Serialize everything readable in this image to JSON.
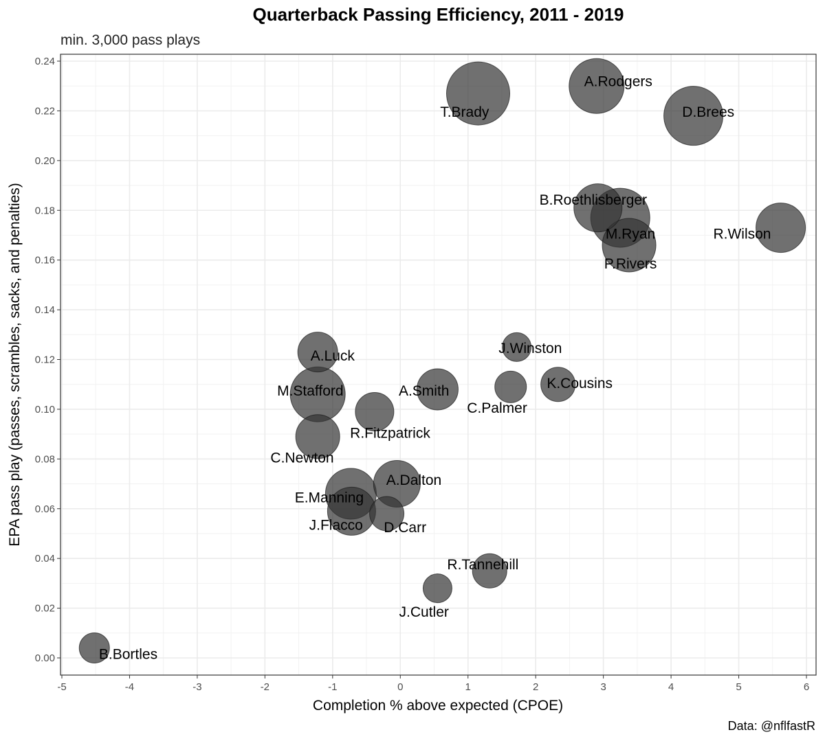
{
  "chart_data": {
    "type": "scatter",
    "title": "Quarterback Passing Efficiency, 2011 - 2019",
    "subtitle": "min. 3,000 pass plays",
    "caption": "Data: @nflfastR",
    "xlabel": "Completion % above expected (CPOE)",
    "ylabel": "EPA pass play (passes, scrambles, sacks, and penalties)",
    "xlim": [
      -5,
      6
    ],
    "ylim": [
      0,
      0.24
    ],
    "xticks": [
      -5,
      -4,
      -3,
      -2,
      -1,
      0,
      1,
      2,
      3,
      4,
      5,
      6
    ],
    "yticks": [
      0.0,
      0.02,
      0.04,
      0.06,
      0.08,
      0.1,
      0.12,
      0.14,
      0.16,
      0.18,
      0.2,
      0.22,
      0.24
    ],
    "ytick_labels": [
      "0.00",
      "0.02",
      "0.04",
      "0.06",
      "0.08",
      "0.10",
      "0.12",
      "0.14",
      "0.16",
      "0.18",
      "0.20",
      "0.22",
      "0.24"
    ],
    "grid": true,
    "point_color": "#333333",
    "points": [
      {
        "label": "T.Brady",
        "x": 1.15,
        "y": 0.227,
        "size": 46,
        "label_x": 0.95,
        "label_y": 0.2195
      },
      {
        "label": "A.Rodgers",
        "x": 2.9,
        "y": 0.23,
        "size": 40,
        "label_x": 3.22,
        "label_y": 0.2318
      },
      {
        "label": "D.Brees",
        "x": 4.33,
        "y": 0.218,
        "size": 43,
        "label_x": 4.55,
        "label_y": 0.2195
      },
      {
        "label": "B.Roethlisberger",
        "x": 2.92,
        "y": 0.181,
        "size": 35,
        "label_x": 2.85,
        "label_y": 0.1842
      },
      {
        "label": "M.Ryan",
        "x": 3.25,
        "y": 0.177,
        "size": 43,
        "label_x": 3.4,
        "label_y": 0.1705
      },
      {
        "label": "P.Rivers",
        "x": 3.38,
        "y": 0.166,
        "size": 39,
        "label_x": 3.4,
        "label_y": 0.1585
      },
      {
        "label": "R.Wilson",
        "x": 5.62,
        "y": 0.173,
        "size": 36,
        "label_x": 5.05,
        "label_y": 0.1705
      },
      {
        "label": "J.Winston",
        "x": 1.72,
        "y": 0.125,
        "size": 21,
        "label_x": 1.92,
        "label_y": 0.1245
      },
      {
        "label": "A.Luck",
        "x": -1.22,
        "y": 0.123,
        "size": 29,
        "label_x": -1.0,
        "label_y": 0.1215
      },
      {
        "label": "K.Cousins",
        "x": 2.33,
        "y": 0.11,
        "size": 25,
        "label_x": 2.65,
        "label_y": 0.1105
      },
      {
        "label": "C.Palmer",
        "x": 1.63,
        "y": 0.109,
        "size": 23,
        "label_x": 1.43,
        "label_y": 0.1005
      },
      {
        "label": "A.Smith",
        "x": 0.55,
        "y": 0.108,
        "size": 30,
        "label_x": 0.35,
        "label_y": 0.1075
      },
      {
        "label": "M.Stafford",
        "x": -1.22,
        "y": 0.106,
        "size": 40,
        "label_x": -1.33,
        "label_y": 0.1075
      },
      {
        "label": "R.Fitzpatrick",
        "x": -0.38,
        "y": 0.099,
        "size": 28,
        "label_x": -0.15,
        "label_y": 0.0905
      },
      {
        "label": "C.Newton",
        "x": -1.22,
        "y": 0.089,
        "size": 32,
        "label_x": -1.45,
        "label_y": 0.0805
      },
      {
        "label": "A.Dalton",
        "x": -0.05,
        "y": 0.07,
        "size": 34,
        "label_x": 0.2,
        "label_y": 0.0715
      },
      {
        "label": "E.Manning",
        "x": -0.73,
        "y": 0.066,
        "size": 37,
        "label_x": -1.05,
        "label_y": 0.0645
      },
      {
        "label": "J.Flacco",
        "x": -0.72,
        "y": 0.059,
        "size": 35,
        "label_x": -0.95,
        "label_y": 0.0535
      },
      {
        "label": "D.Carr",
        "x": -0.2,
        "y": 0.058,
        "size": 25,
        "label_x": 0.07,
        "label_y": 0.0525
      },
      {
        "label": "R.Tannehill",
        "x": 1.32,
        "y": 0.035,
        "size": 25,
        "label_x": 1.22,
        "label_y": 0.0375
      },
      {
        "label": "J.Cutler",
        "x": 0.55,
        "y": 0.028,
        "size": 21,
        "label_x": 0.35,
        "label_y": 0.0185
      },
      {
        "label": "B.Bortles",
        "x": -4.52,
        "y": 0.004,
        "size": 22,
        "label_x": -4.02,
        "label_y": 0.0015
      }
    ]
  }
}
